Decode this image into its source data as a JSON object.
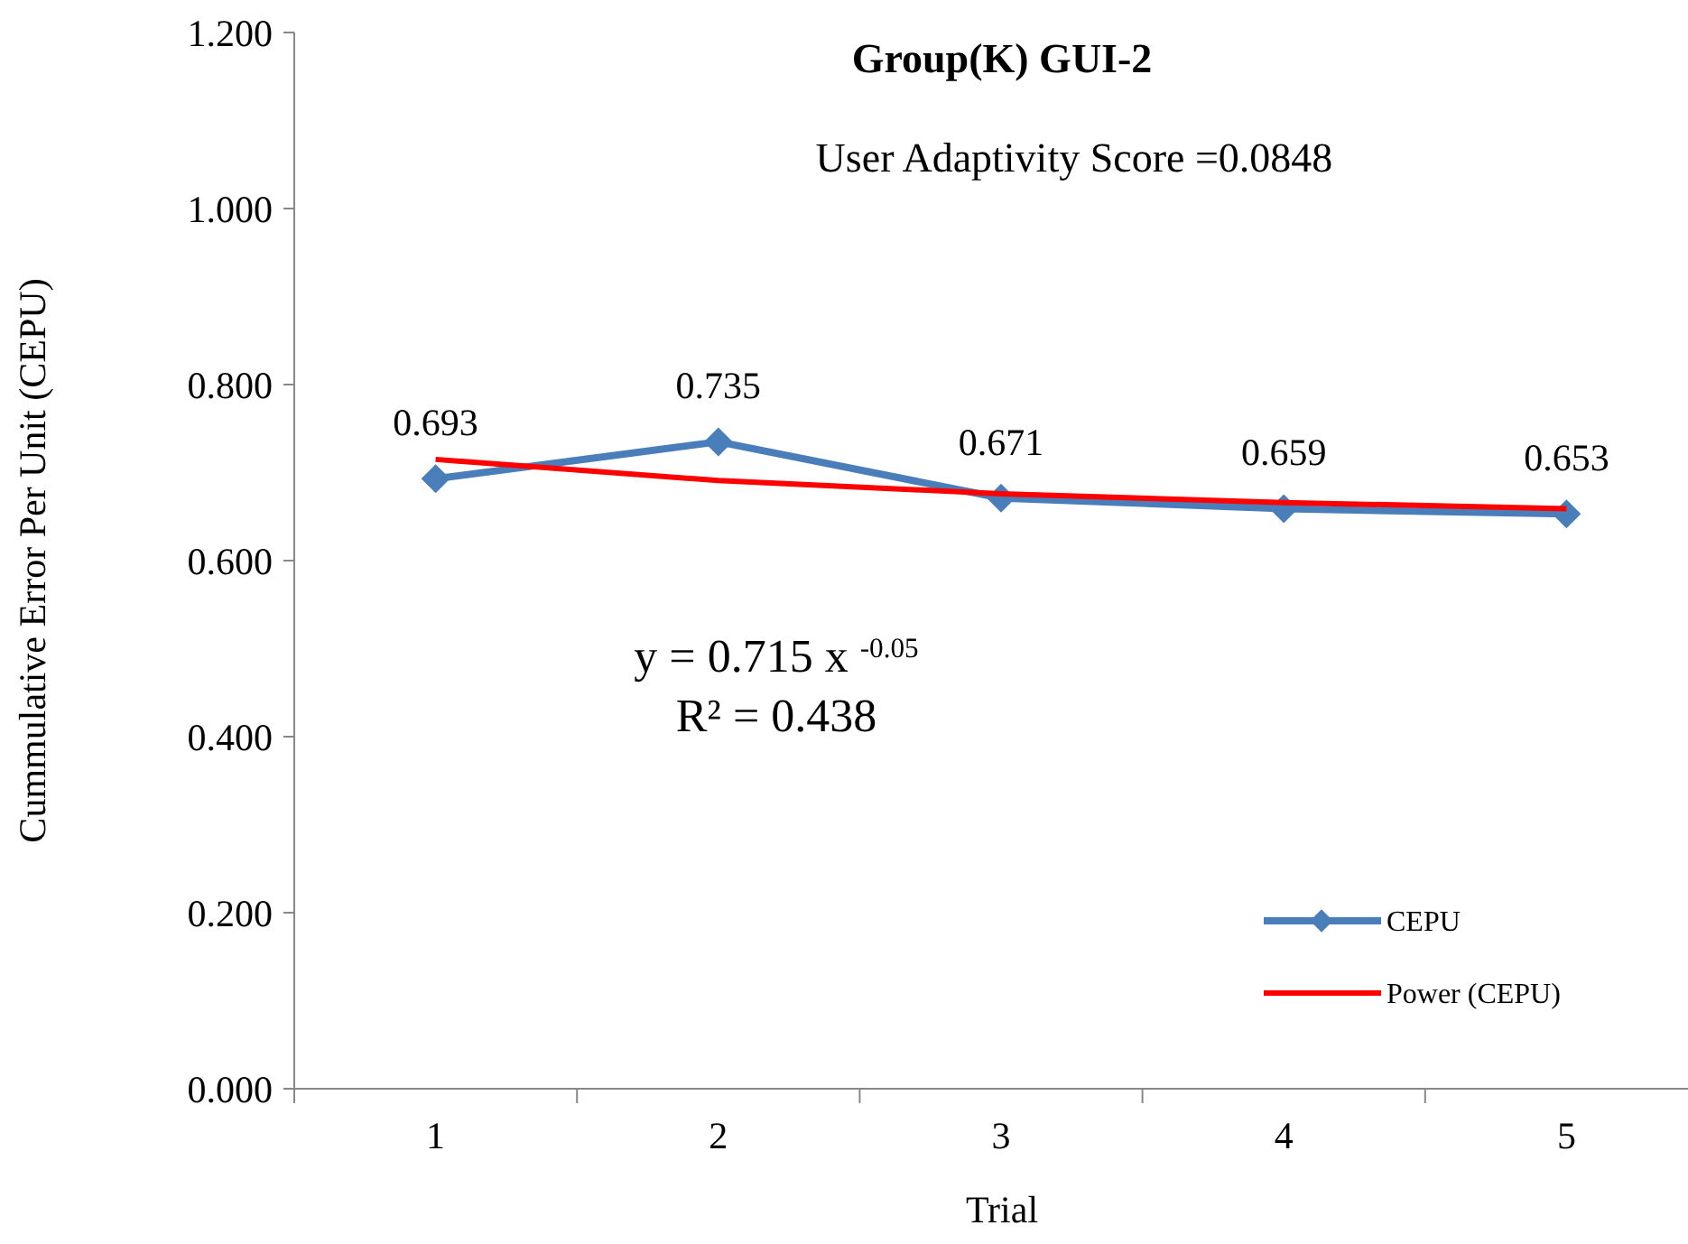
{
  "chart_data": {
    "type": "line",
    "title": "Group(K)  GUI-2",
    "xlabel": "Trial",
    "ylabel": "Cummulative Error Per Unit  (CEPU)",
    "categories": [
      "1",
      "2",
      "3",
      "4",
      "5"
    ],
    "series": [
      {
        "name": "CEPU",
        "color": "#4a7ebb",
        "values": [
          0.693,
          0.735,
          0.671,
          0.659,
          0.653
        ],
        "marker": "diamond",
        "data_labels": true
      },
      {
        "name": "Power (CEPU)",
        "color": "#ff0000",
        "values": [
          0.715,
          0.691,
          0.676,
          0.666,
          0.659
        ],
        "marker": "none"
      }
    ],
    "ylim": [
      0,
      1.2
    ],
    "yticks": [
      {
        "value": 0,
        "label": "0.000"
      },
      {
        "value": 0.2,
        "label": "0.200"
      },
      {
        "value": 0.4,
        "label": "0.400"
      },
      {
        "value": 0.6,
        "label": "0.600"
      },
      {
        "value": 0.8,
        "label": "0.800"
      },
      {
        "value": 1,
        "label": "1.000"
      },
      {
        "value": 1.2,
        "label": "1.200"
      }
    ],
    "grid": false,
    "legend": "bottom right",
    "annotations": [
      "User Adaptivity Score =0.0848",
      "y = 0.715 x $^{-0.05}$",
      "R² = 0.438"
    ]
  }
}
